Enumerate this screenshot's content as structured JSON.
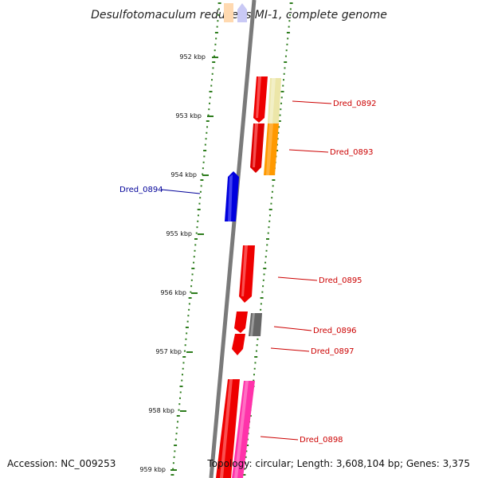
{
  "title": "Desulfotomaculum reducens MI-1, complete genome",
  "accession": "Accession: NC_009253",
  "topology": "Topology: circular; Length: 3,608,104 bp; Genes: 3,375",
  "colors": {
    "backbone": "#7a7a7a",
    "tick": "#2e7d1e",
    "forward_label": "#cc0000",
    "reverse_label": "#000099"
  },
  "scale_labels": [
    "952 kbp",
    "953 kbp",
    "954 kbp",
    "955 kbp",
    "956 kbp",
    "957 kbp",
    "958 kbp",
    "959 kbp"
  ],
  "genes": [
    {
      "id": "Dred_0892",
      "strand": "forward",
      "color": "#e8e0a0"
    },
    {
      "id": "Dred_0893",
      "strand": "forward",
      "color": "#ff9900"
    },
    {
      "id": "Dred_0894",
      "strand": "reverse",
      "color": "#0000dd"
    },
    {
      "id": "Dred_0895",
      "strand": "forward",
      "color": "#ee0000"
    },
    {
      "id": "Dred_0896",
      "strand": "forward",
      "color": "#666666"
    },
    {
      "id": "Dred_0897",
      "strand": "forward",
      "color": "#ee0000"
    },
    {
      "id": "Dred_0898",
      "strand": "forward",
      "color": "#ff44aa"
    }
  ]
}
